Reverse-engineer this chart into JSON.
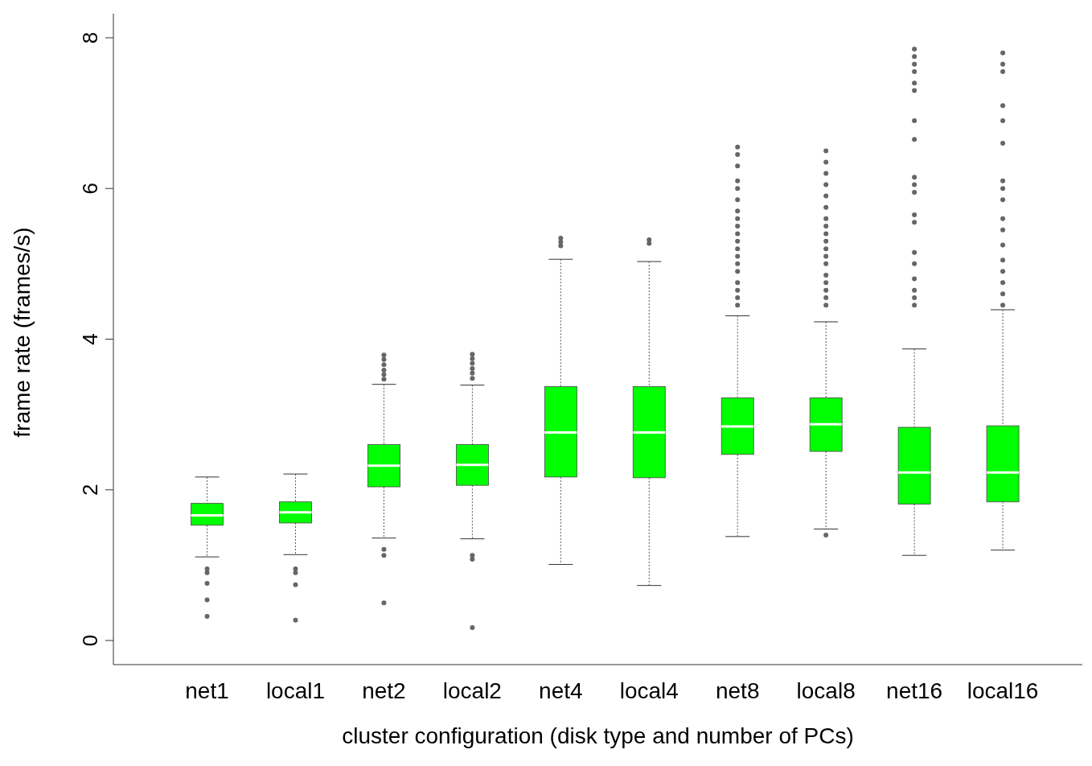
{
  "chart_data": {
    "type": "box",
    "xlabel": "cluster configuration (disk type and number of PCs)",
    "ylabel": "frame rate (frames/s)",
    "categories": [
      "net1",
      "local1",
      "net2",
      "local2",
      "net4",
      "local4",
      "net8",
      "local8",
      "net16",
      "local16"
    ],
    "color": "#00ff00",
    "ylim": [
      -0.32,
      8.32
    ],
    "yticks": [
      0,
      2,
      4,
      6,
      8
    ],
    "boxes": [
      {
        "low": 1.11,
        "q1": 1.53,
        "median": 1.66,
        "q3": 1.82,
        "high": 2.17,
        "outliers": [
          0.95,
          0.9,
          0.76,
          0.54,
          0.32
        ]
      },
      {
        "low": 1.14,
        "q1": 1.56,
        "median": 1.7,
        "q3": 1.84,
        "high": 2.21,
        "outliers": [
          0.95,
          0.9,
          0.74,
          0.27
        ]
      },
      {
        "low": 1.36,
        "q1": 2.04,
        "median": 2.32,
        "q3": 2.6,
        "high": 3.4,
        "outliers": [
          1.21,
          1.13,
          0.5,
          3.47,
          3.53,
          3.59,
          3.66,
          3.73,
          3.79
        ]
      },
      {
        "low": 1.35,
        "q1": 2.06,
        "median": 2.33,
        "q3": 2.6,
        "high": 3.39,
        "outliers": [
          1.13,
          1.08,
          0.17,
          3.48,
          3.55,
          3.61,
          3.68,
          3.74,
          3.8
        ]
      },
      {
        "low": 1.01,
        "q1": 2.17,
        "median": 2.76,
        "q3": 3.37,
        "high": 5.06,
        "outliers": [
          5.24,
          5.29,
          5.34
        ]
      },
      {
        "low": 0.73,
        "q1": 2.16,
        "median": 2.76,
        "q3": 3.37,
        "high": 5.03,
        "outliers": [
          5.27,
          5.32
        ]
      },
      {
        "low": 1.38,
        "q1": 2.47,
        "median": 2.84,
        "q3": 3.22,
        "high": 4.31,
        "outliers": [
          4.45,
          4.55,
          4.65,
          4.75,
          4.9,
          5.0,
          5.1,
          5.2,
          5.3,
          5.4,
          5.5,
          5.6,
          5.7,
          5.85,
          6.0,
          6.1,
          6.3,
          6.45,
          6.55
        ]
      },
      {
        "low": 1.48,
        "q1": 2.51,
        "median": 2.87,
        "q3": 3.22,
        "high": 4.23,
        "outliers": [
          1.4,
          4.45,
          4.55,
          4.65,
          4.75,
          4.85,
          5.0,
          5.1,
          5.2,
          5.3,
          5.4,
          5.5,
          5.6,
          5.75,
          5.9,
          6.05,
          6.2,
          6.35,
          6.5
        ]
      },
      {
        "low": 1.13,
        "q1": 1.81,
        "median": 2.23,
        "q3": 2.83,
        "high": 3.87,
        "outliers": [
          4.45,
          4.55,
          4.65,
          4.8,
          5.0,
          5.15,
          5.55,
          5.65,
          5.95,
          6.05,
          6.15,
          6.65,
          6.9,
          7.3,
          7.4,
          7.55,
          7.65,
          7.75,
          7.85
        ]
      },
      {
        "low": 1.2,
        "q1": 1.84,
        "median": 2.23,
        "q3": 2.85,
        "high": 4.39,
        "outliers": [
          4.45,
          4.6,
          4.75,
          4.9,
          5.05,
          5.25,
          5.45,
          5.6,
          5.85,
          6.0,
          6.1,
          6.6,
          6.9,
          7.1,
          7.55,
          7.65,
          7.8
        ]
      }
    ]
  }
}
